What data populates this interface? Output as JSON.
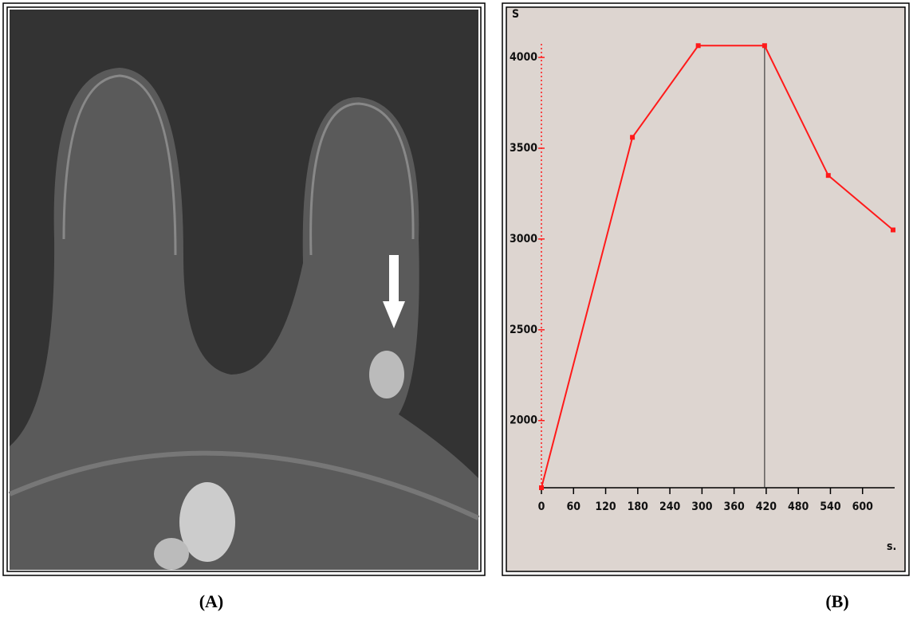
{
  "chart_data": {
    "type": "line",
    "y_label": "S",
    "x_label": "s.",
    "x": [
      0,
      170,
      293,
      417,
      536,
      657
    ],
    "values": [
      1630,
      3560,
      4065,
      4065,
      3350,
      3050
    ],
    "color": "#ff1a1a",
    "cursor_x": 417,
    "xlim": [
      0,
      660
    ],
    "ylim": [
      1630,
      4075
    ],
    "xticks": [
      0,
      60,
      120,
      180,
      240,
      300,
      360,
      420,
      480,
      540,
      600
    ],
    "yticks": [
      2000,
      2500,
      3000,
      3500,
      4000
    ]
  },
  "captions": [
    "(A)",
    "(B)"
  ]
}
